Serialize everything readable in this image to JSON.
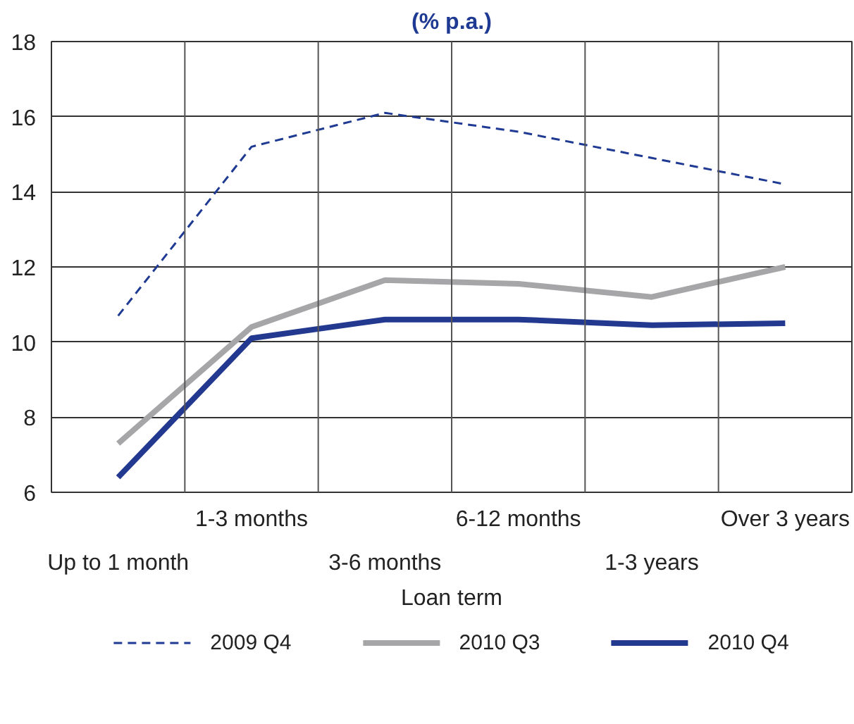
{
  "chart_data": {
    "type": "line",
    "title": "(% p.a.)",
    "xlabel": "Loan term",
    "categories": [
      "Up to 1 month",
      "1-3 months",
      "3-6 months",
      "6-12 months",
      "1-3 years",
      "Over 3 years"
    ],
    "series": [
      {
        "name": "2009 Q4",
        "color": "#1f3a93",
        "line_style": "dashed",
        "values": [
          10.7,
          15.2,
          16.1,
          15.6,
          14.9,
          14.2
        ]
      },
      {
        "name": "2010 Q3",
        "color": "#a6a6a8",
        "values": [
          7.3,
          10.4,
          11.65,
          11.55,
          11.2,
          12.0
        ]
      },
      {
        "name": "2010 Q4",
        "color": "#22398f",
        "values": [
          6.4,
          10.1,
          10.6,
          10.6,
          10.45,
          10.5
        ]
      }
    ],
    "ylim": [
      6,
      18
    ],
    "yticks": [
      6,
      8,
      10,
      12,
      14,
      16,
      18
    ],
    "grid": true,
    "legend": "bottom",
    "marker": "none"
  }
}
